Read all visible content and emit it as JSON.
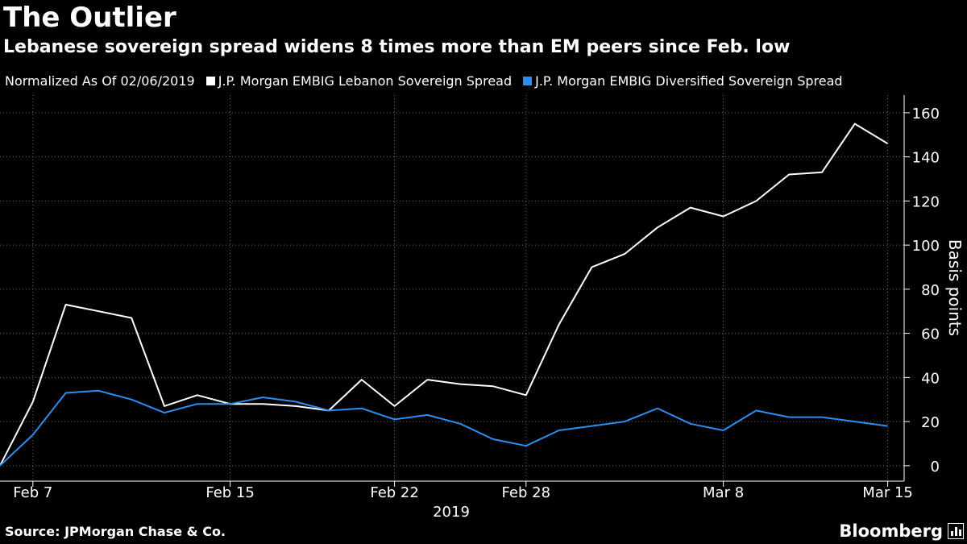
{
  "header": {
    "title": "The Outlier",
    "subtitle": "Lebanese sovereign spread widens 8 times more than EM peers since Feb. low"
  },
  "legend": {
    "note": "Normalized As Of 02/06/2019",
    "items": [
      {
        "label": "J.P. Morgan EMBIG Lebanon Sovereign Spread",
        "color": "#ffffff"
      },
      {
        "label": "J.P. Morgan EMBIG Diversified Sovereign Spread",
        "color": "#2b8ef0"
      }
    ]
  },
  "footer": {
    "source": "Source: JPMorgan Chase & Co.",
    "brand": "Bloomberg"
  },
  "chart_data": {
    "type": "line",
    "x": [
      "2019-02-06",
      "2019-02-07",
      "2019-02-08",
      "2019-02-11",
      "2019-02-12",
      "2019-02-13",
      "2019-02-14",
      "2019-02-15",
      "2019-02-18",
      "2019-02-19",
      "2019-02-20",
      "2019-02-21",
      "2019-02-22",
      "2019-02-25",
      "2019-02-26",
      "2019-02-27",
      "2019-02-28",
      "2019-03-01",
      "2019-03-04",
      "2019-03-05",
      "2019-03-06",
      "2019-03-07",
      "2019-03-08",
      "2019-03-11",
      "2019-03-12",
      "2019-03-13",
      "2019-03-14",
      "2019-03-15",
      "2019-03-18"
    ],
    "x_tick_labels": [
      "Feb 7",
      "Feb 15",
      "Feb 22",
      "Feb 28",
      "Mar 8",
      "Mar 15"
    ],
    "x_tick_indices": [
      1,
      7,
      12,
      16,
      22,
      27
    ],
    "x_axis_year": "2019",
    "series": [
      {
        "name": "J.P. Morgan EMBIG Lebanon Sovereign Spread",
        "color": "#ffffff",
        "values": [
          0,
          29,
          73,
          70,
          67,
          27,
          32,
          28,
          28,
          27,
          25,
          39,
          27,
          39,
          37,
          36,
          32,
          64,
          90,
          96,
          108,
          117,
          113,
          120,
          132,
          133,
          155,
          146,
          null
        ]
      },
      {
        "name": "J.P. Morgan EMBIG Diversified Sovereign Spread",
        "color": "#2b8ef0",
        "values": [
          0,
          14,
          33,
          34,
          30,
          24,
          28,
          28,
          31,
          29,
          25,
          26,
          21,
          23,
          19,
          12,
          9,
          16,
          18,
          20,
          26,
          19,
          16,
          25,
          22,
          22,
          20,
          18,
          null
        ]
      }
    ],
    "ylabel": "Basis points",
    "ylim": [
      -7,
      168
    ],
    "yticks": [
      0,
      20,
      40,
      60,
      80,
      100,
      120,
      140,
      160
    ],
    "grid": true
  }
}
